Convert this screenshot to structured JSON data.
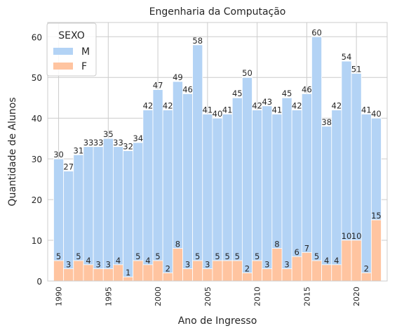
{
  "chart_data": {
    "type": "bar",
    "title": "Engenharia da Computação",
    "xlabel": "Ano de Ingresso",
    "ylabel": "Quantidade de Alunos",
    "x": [
      1990,
      1991,
      1992,
      1993,
      1994,
      1995,
      1996,
      1997,
      1998,
      1999,
      2000,
      2001,
      2002,
      2003,
      2004,
      2005,
      2006,
      2007,
      2008,
      2009,
      2010,
      2011,
      2012,
      2013,
      2014,
      2015,
      2016,
      2017,
      2018,
      2019,
      2020,
      2021,
      2022
    ],
    "series": [
      {
        "name": "M",
        "color": "#b3d3f5",
        "values": [
          30,
          27,
          31,
          33,
          33,
          35,
          33,
          32,
          34,
          42,
          47,
          42,
          49,
          46,
          58,
          41,
          40,
          41,
          45,
          50,
          42,
          43,
          41,
          45,
          42,
          46,
          60,
          38,
          42,
          54,
          51,
          41,
          40
        ]
      },
      {
        "name": "F",
        "color": "#ffc4a0",
        "values": [
          5,
          3,
          5,
          4,
          3,
          3,
          4,
          1,
          5,
          4,
          5,
          2,
          8,
          3,
          5,
          3,
          5,
          5,
          5,
          2,
          5,
          3,
          8,
          3,
          6,
          7,
          5,
          4,
          4,
          10,
          10,
          2,
          15
        ]
      }
    ],
    "overlap": true,
    "xlim": [
      1988.9,
      2023.1
    ],
    "ylim": [
      0,
      63.5
    ],
    "xticks": [
      "1990",
      "1995",
      "2000",
      "2005",
      "2010",
      "2015",
      "2020"
    ],
    "yticks": [
      "0",
      "10",
      "20",
      "30",
      "40",
      "50",
      "60"
    ],
    "grid": true,
    "legend": {
      "title": "SEXO",
      "placement": "top-left"
    }
  }
}
